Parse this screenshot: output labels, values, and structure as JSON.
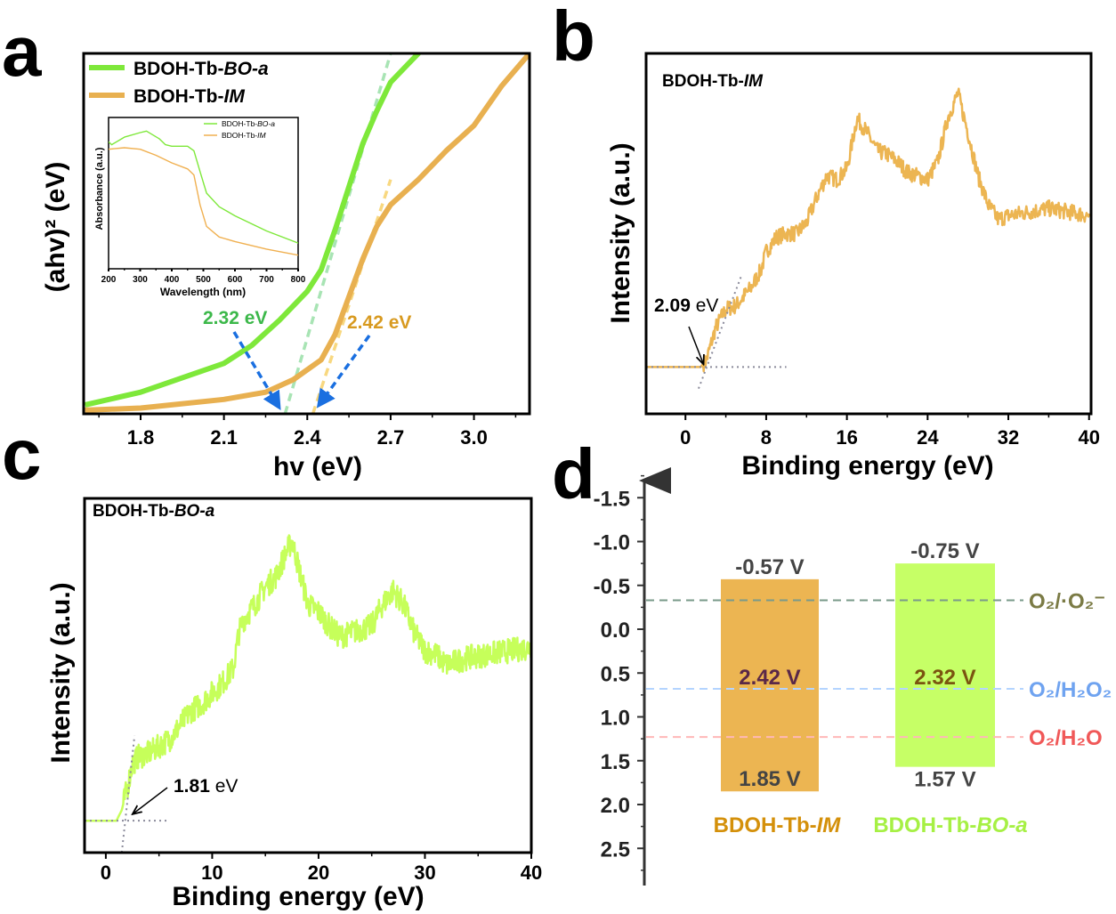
{
  "panel_letters": {
    "a": "a",
    "b": "b",
    "c": "c",
    "d": "d"
  },
  "chart_data": [
    {
      "panel": "a",
      "type": "line",
      "xlabel": "hv (eV)",
      "ylabel": "(ahv)² (eV)",
      "xlim": [
        1.595,
        3.2
      ],
      "ylim": [
        0,
        1
      ],
      "xticks": [
        "1.8",
        "2.1",
        "2.4",
        "2.7",
        "3.0"
      ],
      "xtick_values": [
        1.8,
        2.1,
        2.4,
        2.7,
        3.0
      ],
      "legend_position": "top-left",
      "series": [
        {
          "name_prefix": "BDOH-Tb-",
          "name_italic": "BO-a",
          "color": "#7ee83a",
          "x": [
            1.6,
            1.8,
            2.1,
            2.2,
            2.3,
            2.4,
            2.45,
            2.5,
            2.55,
            2.6,
            2.65,
            2.7,
            2.75,
            2.8,
            2.82
          ],
          "y": [
            0.025,
            0.06,
            0.14,
            0.19,
            0.26,
            0.34,
            0.4,
            0.51,
            0.63,
            0.75,
            0.84,
            0.92,
            0.96,
            1.0,
            1.02
          ]
        },
        {
          "name_prefix": "BDOH-Tb-",
          "name_italic": "IM",
          "color": "#e8b050",
          "x": [
            1.6,
            1.8,
            2.1,
            2.25,
            2.35,
            2.45,
            2.5,
            2.55,
            2.6,
            2.65,
            2.7,
            2.8,
            2.9,
            3.0,
            3.1,
            3.2
          ],
          "y": [
            0.01,
            0.016,
            0.04,
            0.06,
            0.095,
            0.15,
            0.22,
            0.325,
            0.43,
            0.52,
            0.58,
            0.65,
            0.73,
            0.8,
            0.91,
            1.0
          ]
        }
      ],
      "tangents": [
        {
          "color": "#a8e4b4",
          "x": [
            2.32,
            2.7
          ],
          "y": [
            0,
            1.0
          ]
        },
        {
          "color": "#f8d880",
          "x": [
            2.42,
            2.7
          ],
          "y": [
            0,
            0.65
          ]
        }
      ],
      "annotations": [
        {
          "text": "2.32 eV",
          "color": "#3cb84a"
        },
        {
          "text": "2.42 eV",
          "color": "#d89a20"
        }
      ],
      "arrow_color": "#1a6fe0"
    },
    {
      "panel": "a-inset",
      "type": "line",
      "xlabel": "Wavelength (nm)",
      "ylabel": "Absorbance (a.u.)",
      "xlim": [
        200,
        800
      ],
      "ylim": [
        0,
        1
      ],
      "xticks": [
        "200",
        "300",
        "400",
        "500",
        "600",
        "700",
        "800"
      ],
      "xtick_values": [
        200,
        300,
        400,
        500,
        600,
        700,
        800
      ],
      "legend_position": "top-right",
      "series": [
        {
          "name_prefix": "BDOH-Tb-",
          "name_italic": "BO-a",
          "color": "#7ee83a",
          "x": [
            200,
            210,
            250,
            300,
            320,
            360,
            380,
            400,
            450,
            470,
            490,
            510,
            550,
            600,
            700,
            800
          ],
          "y": [
            0.84,
            0.82,
            0.87,
            0.9,
            0.91,
            0.86,
            0.82,
            0.81,
            0.81,
            0.78,
            0.64,
            0.5,
            0.41,
            0.35,
            0.25,
            0.17
          ]
        },
        {
          "name_prefix": "BDOH-Tb-",
          "name_italic": "IM",
          "color": "#f0b050",
          "x": [
            200,
            250,
            300,
            350,
            400,
            450,
            470,
            490,
            510,
            550,
            600,
            700,
            800
          ],
          "y": [
            0.79,
            0.8,
            0.79,
            0.75,
            0.7,
            0.66,
            0.62,
            0.42,
            0.28,
            0.21,
            0.18,
            0.13,
            0.09
          ]
        }
      ]
    },
    {
      "panel": "b",
      "type": "line",
      "title_prefix": "BDOH-Tb-",
      "title_italic": "IM",
      "xlabel": "Binding energy (eV)",
      "ylabel": "Intensity (a.u.)",
      "xlim": [
        -3.9,
        40.2
      ],
      "ylim": [
        0,
        1
      ],
      "xticks": [
        "0",
        "8",
        "16",
        "24",
        "32",
        "40"
      ],
      "xtick_values": [
        0,
        8,
        16,
        24,
        32,
        40
      ],
      "series": [
        {
          "color": "#ecb552",
          "x": [
            -3.9,
            1.5,
            2.09,
            3,
            4,
            5,
            6.5,
            7.5,
            8,
            9,
            10,
            11,
            12,
            13,
            14,
            15,
            16,
            16.5,
            17,
            18,
            19,
            20,
            21,
            22,
            23,
            24,
            25,
            26,
            27,
            28,
            29,
            30,
            31,
            32,
            34,
            36,
            38,
            40
          ],
          "y": [
            0.13,
            0.13,
            0.15,
            0.24,
            0.29,
            0.3,
            0.35,
            0.4,
            0.45,
            0.49,
            0.5,
            0.5,
            0.53,
            0.6,
            0.66,
            0.65,
            0.68,
            0.75,
            0.82,
            0.78,
            0.73,
            0.72,
            0.7,
            0.67,
            0.66,
            0.65,
            0.7,
            0.82,
            0.89,
            0.78,
            0.66,
            0.58,
            0.54,
            0.55,
            0.56,
            0.57,
            0.56,
            0.55
          ]
        }
      ],
      "tangents": [
        {
          "color": "#8a8a9a",
          "x": [
            1.3,
            5.5
          ],
          "y": [
            0.07,
            0.38
          ]
        },
        {
          "color": "#8a8a9a",
          "x": [
            -3.9,
            10
          ],
          "y": [
            0.13,
            0.13
          ]
        }
      ],
      "annotation": {
        "value": "2.09",
        "unit": " eV",
        "x": 2.09
      }
    },
    {
      "panel": "c",
      "type": "line",
      "title_prefix": "BDOH-Tb-",
      "title_italic": "BO-a",
      "xlabel": "Binding energy (eV)",
      "ylabel": "Intensity (a.u.)",
      "xlim": [
        -2,
        40
      ],
      "ylim": [
        0,
        1
      ],
      "xticks": [
        "0",
        "10",
        "20",
        "30",
        "40"
      ],
      "xtick_values": [
        0,
        10,
        20,
        30,
        40
      ],
      "series": [
        {
          "color": "#c6ff5a",
          "x": [
            -2,
            1,
            1.5,
            2,
            2.5,
            3,
            4,
            5,
            6,
            7,
            8,
            9,
            10,
            11,
            12,
            12.5,
            13,
            14,
            15,
            16,
            17,
            17.5,
            18,
            19,
            20,
            21,
            22,
            23,
            24,
            25,
            26,
            27,
            28,
            29,
            30,
            31,
            32,
            34,
            36,
            38,
            40
          ],
          "y": [
            0.09,
            0.09,
            0.12,
            0.18,
            0.25,
            0.27,
            0.28,
            0.3,
            0.32,
            0.36,
            0.4,
            0.42,
            0.45,
            0.48,
            0.52,
            0.62,
            0.66,
            0.7,
            0.75,
            0.78,
            0.85,
            0.88,
            0.82,
            0.7,
            0.68,
            0.64,
            0.61,
            0.62,
            0.63,
            0.64,
            0.7,
            0.74,
            0.7,
            0.62,
            0.57,
            0.56,
            0.53,
            0.55,
            0.56,
            0.57,
            0.58
          ]
        }
      ],
      "tangents": [
        {
          "color": "#8a8a9a",
          "x": [
            1.5,
            2.7
          ],
          "y": [
            0.0,
            0.33
          ]
        },
        {
          "color": "#8a8a9a",
          "x": [
            -2,
            5.8
          ],
          "y": [
            0.09,
            0.09
          ]
        }
      ],
      "annotation": {
        "value": "1.81",
        "unit": " eV",
        "x": 1.81
      }
    },
    {
      "panel": "d",
      "type": "bar",
      "ylim": [
        2.8,
        -1.6
      ],
      "yticks": [
        "-1.5",
        "-1.0",
        "-0.5",
        "0.0",
        "0.5",
        "1.0",
        "1.5",
        "2.0",
        "2.5"
      ],
      "ytick_values": [
        -1.5,
        -1.0,
        -0.5,
        0.0,
        0.5,
        1.0,
        1.5,
        2.0,
        2.5
      ],
      "bars": [
        {
          "name_prefix": "BDOH-Tb-",
          "name_italic": "IM",
          "color": "#ecb552",
          "label_color": "#d4900a",
          "top": -0.57,
          "bottom": 1.85,
          "top_label": "-0.57 V",
          "bottom_label": "1.85 V",
          "gap_label": "2.42 V",
          "gap_color": "#5a2848"
        },
        {
          "name_prefix": "BDOH-Tb-",
          "name_italic": "BO-a",
          "color": "#c6ff66",
          "label_color": "#a6f044",
          "top": -0.75,
          "bottom": 1.57,
          "top_label": "-0.75 V",
          "bottom_label": "1.57 V",
          "gap_label": "2.32 V",
          "gap_color": "#7a5410"
        }
      ],
      "reference_lines": [
        {
          "label": "O₂/·O₂⁻",
          "value": -0.33,
          "color": "#7a9a8a",
          "label_color": "#7b7b45"
        },
        {
          "label": "O₂/H₂O₂",
          "value": 0.68,
          "color": "#b4d4ff",
          "label_color": "#6fa3f0"
        },
        {
          "label": "O₂/H₂O",
          "value": 1.23,
          "color": "#ffb8b8",
          "label_color": "#f05858"
        }
      ]
    }
  ]
}
